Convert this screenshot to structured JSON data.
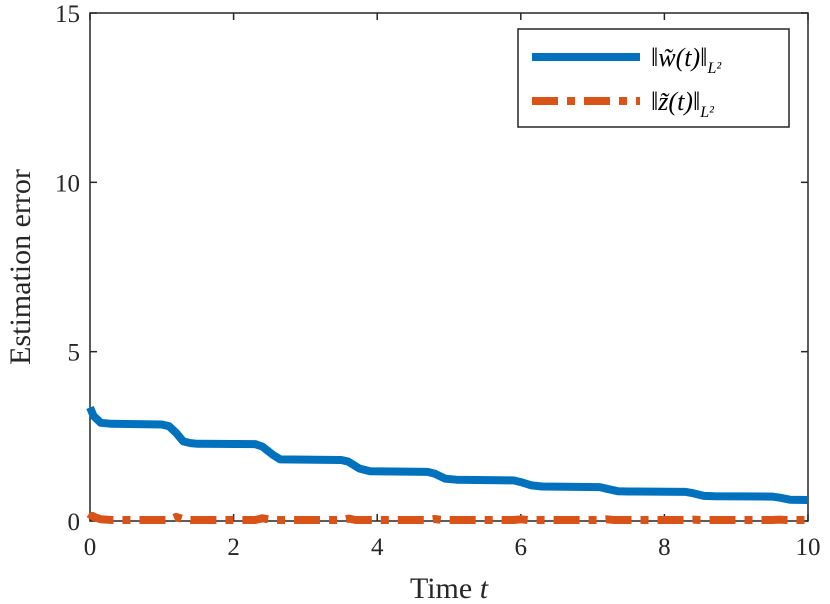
{
  "chart_data": {
    "type": "line",
    "title": "",
    "xlabel": "Time",
    "xlabel_var": "t",
    "ylabel": "Estimation error",
    "xlim": [
      0,
      10
    ],
    "ylim": [
      0,
      15
    ],
    "xticks": [
      0,
      2,
      4,
      6,
      8,
      10
    ],
    "yticks": [
      0,
      5,
      10,
      15
    ],
    "xtick_labels": [
      "0",
      "2",
      "4",
      "6",
      "8",
      "10"
    ],
    "ytick_labels": [
      "0",
      "5",
      "10",
      "15"
    ],
    "grid": false,
    "legend_position": "top-right",
    "series": [
      {
        "name": "||w~(t)||_{L^2}",
        "legend_main": "‖w̃(t)‖",
        "legend_sub": "L²",
        "color": "#0072BD",
        "style": "solid",
        "x": [
          0,
          0.05,
          0.15,
          0.3,
          1.0,
          1.1,
          1.2,
          1.3,
          1.4,
          1.5,
          2.3,
          2.4,
          2.55,
          2.65,
          3.5,
          3.6,
          3.75,
          3.9,
          4.7,
          4.8,
          4.95,
          5.1,
          5.9,
          6.0,
          6.15,
          6.3,
          7.1,
          7.2,
          7.35,
          7.5,
          8.3,
          8.4,
          8.55,
          8.7,
          9.5,
          9.6,
          9.75,
          10.0
        ],
        "y": [
          3.35,
          3.1,
          2.9,
          2.87,
          2.85,
          2.8,
          2.6,
          2.35,
          2.3,
          2.28,
          2.27,
          2.2,
          1.95,
          1.82,
          1.8,
          1.75,
          1.55,
          1.47,
          1.45,
          1.4,
          1.25,
          1.22,
          1.2,
          1.15,
          1.05,
          1.02,
          1.0,
          0.95,
          0.88,
          0.87,
          0.86,
          0.82,
          0.74,
          0.73,
          0.72,
          0.69,
          0.63,
          0.62
        ]
      },
      {
        "name": "||z~(t)||_{L^2}",
        "legend_main": "‖z̃(t)‖",
        "legend_sub": "L²",
        "color": "#D95319",
        "style": "dashdot",
        "x": [
          0,
          0.03,
          0.08,
          0.15,
          0.3,
          1.1,
          1.2,
          1.3,
          1.4,
          2.3,
          2.4,
          2.5,
          2.6,
          3.5,
          3.6,
          3.7,
          4.7,
          4.8,
          4.9,
          5.9,
          6.0,
          6.1,
          7.1,
          7.2,
          7.3,
          8.3,
          8.4,
          8.5,
          9.5,
          9.6,
          9.7,
          10.0
        ],
        "y": [
          0.05,
          0.15,
          0.1,
          0.05,
          0.03,
          0.03,
          0.12,
          0.05,
          0.03,
          0.03,
          0.08,
          0.04,
          0.03,
          0.03,
          0.07,
          0.03,
          0.03,
          0.06,
          0.03,
          0.03,
          0.05,
          0.03,
          0.03,
          0.05,
          0.03,
          0.03,
          0.04,
          0.03,
          0.03,
          0.04,
          0.03,
          0.03
        ]
      }
    ]
  }
}
